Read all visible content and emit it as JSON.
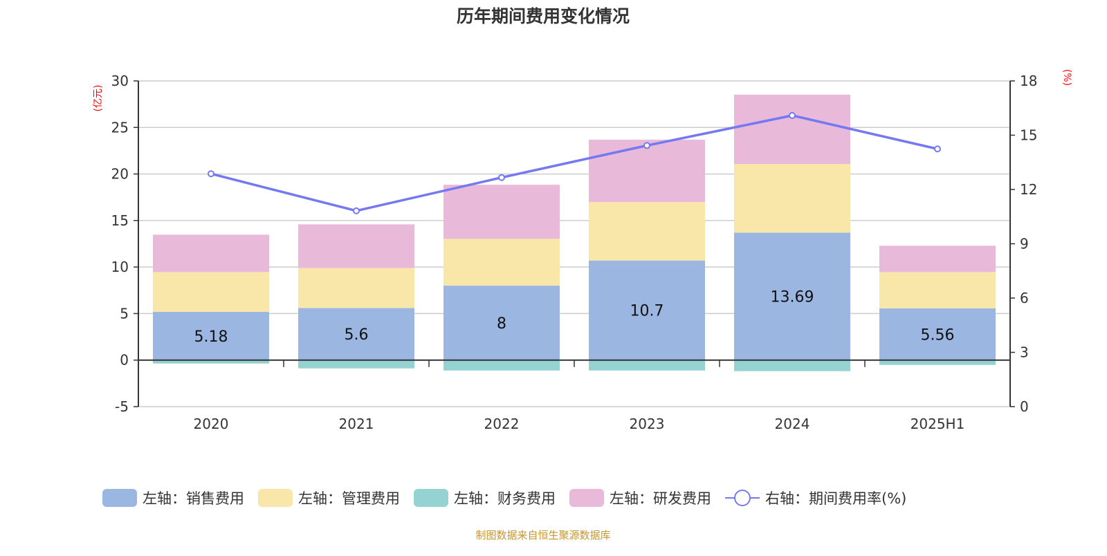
{
  "chart_data": {
    "type": "bar",
    "title": "历年期间费用变化情况",
    "categories": [
      "2020",
      "2021",
      "2022",
      "2023",
      "2024",
      "2025H1"
    ],
    "left_axis": {
      "label": "(亿元)",
      "range": [
        -5,
        30
      ],
      "ticks": [
        -5,
        0,
        5,
        10,
        15,
        20,
        25,
        30
      ]
    },
    "right_axis": {
      "label": "(%)",
      "range": [
        0,
        18
      ],
      "ticks": [
        0,
        3,
        6,
        9,
        12,
        15,
        18
      ]
    },
    "grid": true,
    "stacked": true,
    "legend_position": "bottom",
    "series": [
      {
        "name": "左轴：销售费用",
        "type": "bar",
        "axis": "left",
        "color": "#9bb7e1",
        "values": [
          5.18,
          5.6,
          8,
          10.7,
          13.69,
          5.56
        ],
        "show_labels": true
      },
      {
        "name": "左轴：管理费用",
        "type": "bar",
        "axis": "left",
        "color": "#f8e7a9",
        "values": [
          4.28,
          4.3,
          5.03,
          6.28,
          7.38,
          3.9
        ]
      },
      {
        "name": "左轴：财务费用",
        "type": "bar",
        "axis": "left",
        "color": "#95d3d3",
        "values": [
          -0.37,
          -0.89,
          -1.12,
          -1.12,
          -1.19,
          -0.52
        ]
      },
      {
        "name": "左轴：研发费用",
        "type": "bar",
        "axis": "left",
        "color": "#e8b9d8",
        "values": [
          4.02,
          4.69,
          5.81,
          6.7,
          7.45,
          2.83
        ]
      },
      {
        "name": "右轴：期间费用率(%)",
        "type": "line",
        "axis": "right",
        "color": "#7479f2",
        "values": [
          12.87,
          10.82,
          12.66,
          14.43,
          16.09,
          14.24
        ]
      }
    ],
    "source": "制图数据来自恒生聚源数据库"
  }
}
